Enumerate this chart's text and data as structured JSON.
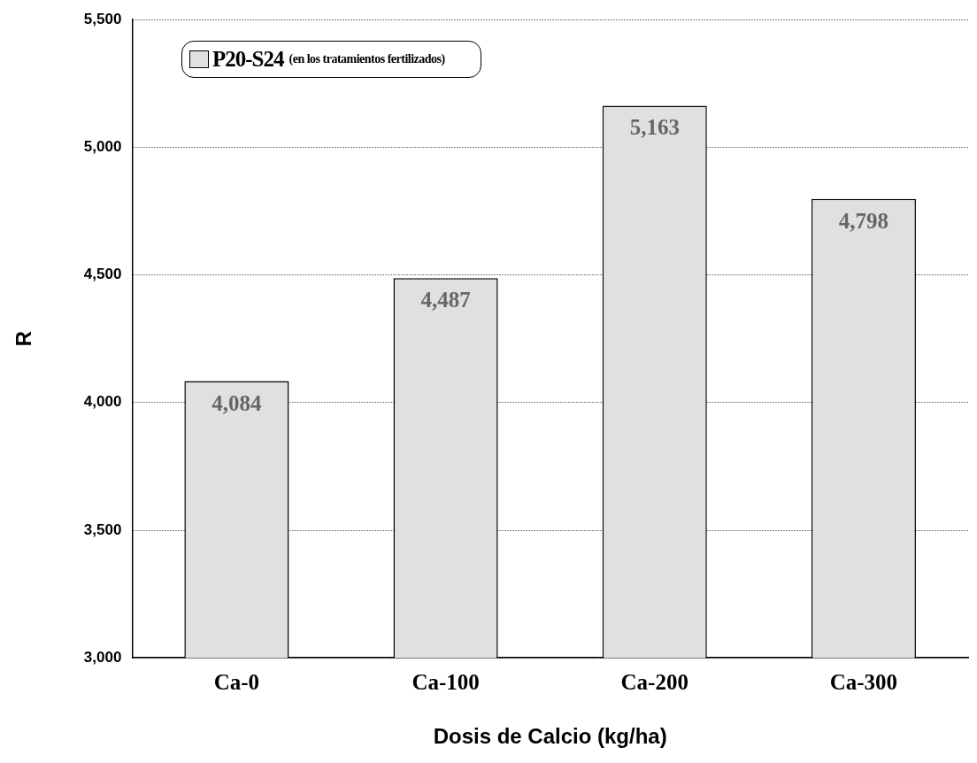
{
  "chart_data": {
    "type": "bar",
    "xlabel": "Dosis de Calcio (kg/ha)",
    "ylabel": "R",
    "categories": [
      "Ca-0",
      "Ca-100",
      "Ca-200",
      "Ca-300"
    ],
    "series": [
      {
        "name": "P20-S24 (en los tratamientos fertilizados)",
        "color": "#e0e0e0",
        "values": [
          4084,
          4487,
          5163,
          4798
        ],
        "value_labels": [
          "4,084",
          "4,487",
          "5,163",
          "4,798"
        ]
      }
    ],
    "ylim": [
      3000,
      5500
    ],
    "yticks": [
      {
        "value": 3000,
        "label": "3,000"
      },
      {
        "value": 3500,
        "label": "3,500"
      },
      {
        "value": 4000,
        "label": "4,000"
      },
      {
        "value": 4500,
        "label": "4,500"
      },
      {
        "value": 5000,
        "label": "5,000"
      },
      {
        "value": 5500,
        "label": "5,500"
      }
    ],
    "grid": "y",
    "legend": "top left"
  }
}
